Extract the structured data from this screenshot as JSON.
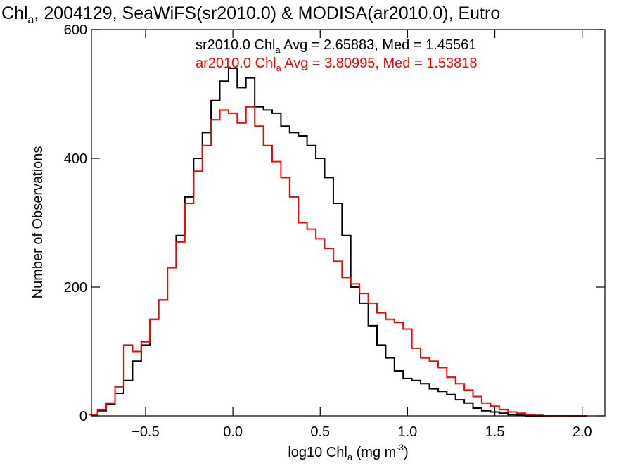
{
  "chart_data": {
    "type": "line",
    "title": {
      "parts": [
        "Chl",
        "a",
        ", 2004129, SeaWiFS(sr2010.0) & MODISA(ar2010.0), Eutro"
      ]
    },
    "xlabel": {
      "parts": [
        "log10 Chl",
        "a",
        " (mg m",
        "-3",
        ")"
      ]
    },
    "ylabel": "Number of Observations",
    "xlim": [
      -0.81,
      2.13
    ],
    "ylim": [
      0,
      600
    ],
    "x_ticks": [
      {
        "v": -0.5,
        "label": "−0.5"
      },
      {
        "v": 0.0,
        "label": "0.0"
      },
      {
        "v": 0.5,
        "label": "0.5"
      },
      {
        "v": 1.0,
        "label": "1.0"
      },
      {
        "v": 1.5,
        "label": "1.5"
      },
      {
        "v": 2.0,
        "label": "2.0"
      }
    ],
    "y_ticks": [
      {
        "v": 0,
        "label": "0"
      },
      {
        "v": 200,
        "label": "200"
      },
      {
        "v": 400,
        "label": "400"
      },
      {
        "v": 600,
        "label": "600"
      }
    ],
    "legend": [
      {
        "parts": [
          "sr2010.0 Chl",
          "a",
          " Avg = 2.65883, Med = 1.45561"
        ],
        "color": "#000000"
      },
      {
        "parts": [
          "ar2010.0 Chl",
          "a",
          " Avg = 3.80995, Med = 1.53818"
        ],
        "color": "#ff0000"
      }
    ],
    "series": [
      {
        "color": "#000000",
        "x": [
          -0.8,
          -0.75,
          -0.7,
          -0.65,
          -0.6,
          -0.55,
          -0.5,
          -0.45,
          -0.4,
          -0.35,
          -0.3,
          -0.25,
          -0.2,
          -0.15,
          -0.1,
          -0.05,
          0.0,
          0.05,
          0.1,
          0.15,
          0.2,
          0.25,
          0.3,
          0.35,
          0.4,
          0.45,
          0.5,
          0.55,
          0.6,
          0.65,
          0.7,
          0.75,
          0.8,
          0.85,
          0.9,
          0.95,
          1.0,
          1.05,
          1.1,
          1.15,
          1.2,
          1.25,
          1.3,
          1.35,
          1.4,
          1.45,
          1.5,
          1.55,
          1.6,
          1.65,
          1.7,
          1.75,
          1.8,
          1.85,
          1.9,
          1.95,
          2.0
        ],
        "y": [
          2,
          8,
          18,
          35,
          55,
          85,
          110,
          150,
          180,
          230,
          280,
          340,
          400,
          440,
          490,
          520,
          540,
          510,
          525,
          480,
          475,
          470,
          450,
          440,
          435,
          420,
          400,
          370,
          330,
          280,
          200,
          175,
          140,
          110,
          90,
          70,
          58,
          55,
          50,
          42,
          38,
          33,
          25,
          20,
          12,
          8,
          6,
          4,
          2,
          1,
          0,
          0,
          0,
          0,
          0,
          0,
          0
        ]
      },
      {
        "color": "#ff0000",
        "x": [
          -0.8,
          -0.75,
          -0.7,
          -0.65,
          -0.6,
          -0.55,
          -0.5,
          -0.45,
          -0.4,
          -0.35,
          -0.3,
          -0.25,
          -0.2,
          -0.15,
          -0.1,
          -0.05,
          0.0,
          0.05,
          0.1,
          0.15,
          0.2,
          0.25,
          0.3,
          0.35,
          0.4,
          0.45,
          0.5,
          0.55,
          0.6,
          0.65,
          0.7,
          0.75,
          0.8,
          0.85,
          0.9,
          0.95,
          1.0,
          1.05,
          1.1,
          1.15,
          1.2,
          1.25,
          1.3,
          1.35,
          1.4,
          1.45,
          1.5,
          1.55,
          1.6,
          1.65,
          1.7,
          1.75,
          1.8,
          1.85,
          1.9,
          1.95,
          2.0
        ],
        "y": [
          2,
          10,
          20,
          45,
          110,
          100,
          115,
          150,
          180,
          230,
          270,
          330,
          380,
          420,
          460,
          475,
          470,
          455,
          480,
          450,
          420,
          395,
          370,
          340,
          300,
          290,
          275,
          260,
          240,
          215,
          205,
          190,
          175,
          160,
          150,
          145,
          135,
          105,
          90,
          85,
          75,
          60,
          50,
          40,
          30,
          20,
          15,
          10,
          6,
          4,
          2,
          1,
          0,
          0,
          0,
          0,
          0
        ]
      }
    ]
  }
}
